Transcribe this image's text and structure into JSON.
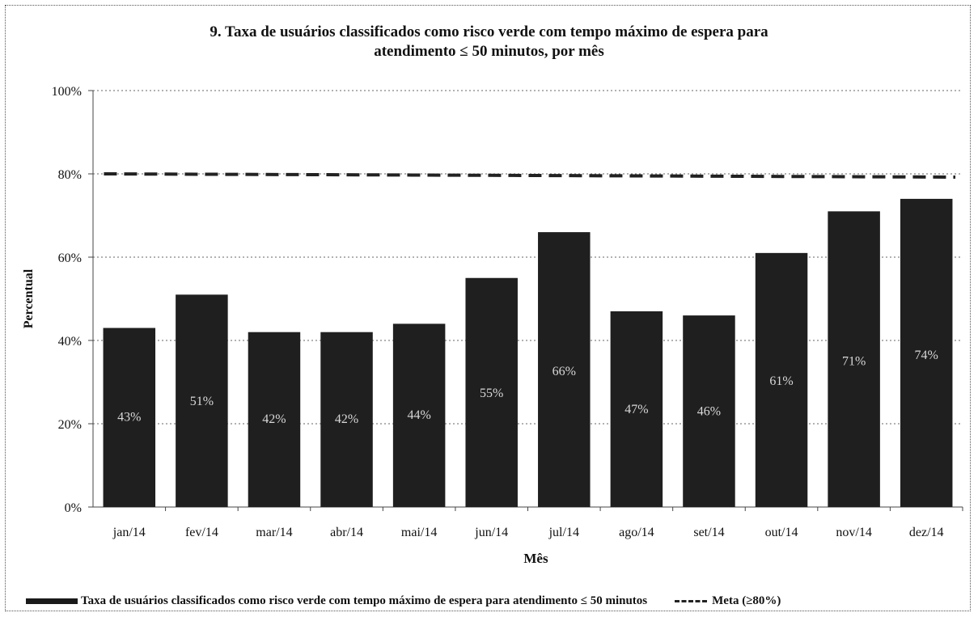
{
  "chart_data": {
    "type": "bar",
    "title_lines": [
      "9. Taxa de usuários classificados como risco verde com tempo máximo de espera para",
      "atendimento ≤ 50 minutos, por mês"
    ],
    "xlabel": "Mês",
    "ylabel": "Percentual",
    "categories": [
      "jan/14",
      "fev/14",
      "mar/14",
      "abr/14",
      "mai/14",
      "jun/14",
      "jul/14",
      "ago/14",
      "set/14",
      "out/14",
      "nov/14",
      "dez/14"
    ],
    "series": [
      {
        "name": "Taxa de usuários classificados como risco verde com tempo máximo de espera para atendimento ≤ 50 minutos",
        "values": [
          43,
          51,
          42,
          42,
          44,
          55,
          66,
          47,
          46,
          61,
          71,
          74
        ],
        "labels": [
          "43%",
          "51%",
          "42%",
          "42%",
          "44%",
          "55%",
          "66%",
          "47%",
          "46%",
          "61%",
          "71%",
          "74%"
        ],
        "color": "#1f1f1f"
      },
      {
        "name": "Meta (≥80%)",
        "type": "dashed-line",
        "value": 80,
        "color": "#222222"
      }
    ],
    "ylim": [
      0,
      100
    ],
    "yticks": [
      0,
      20,
      40,
      60,
      80,
      100
    ],
    "ytick_labels": [
      "0%",
      "20%",
      "40%",
      "60%",
      "80%",
      "100%"
    ],
    "grid": "horizontal dotted",
    "legend_position": "bottom"
  },
  "legend": {
    "bar_label": "Taxa de usuários classificados como risco verde com tempo máximo de espera para atendimento ≤ 50 minutos",
    "line_label": "Meta (≥80%)"
  }
}
